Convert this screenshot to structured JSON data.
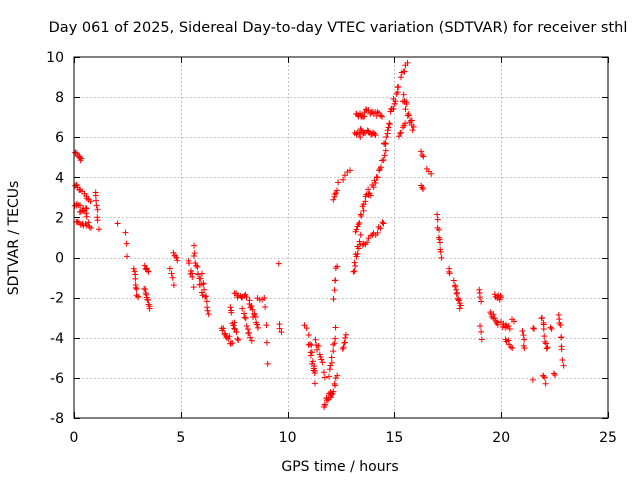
{
  "colors": {
    "series": "#ff0000",
    "grid": "#a0a0a0",
    "frame": "#000000",
    "background": "#ffffff"
  },
  "chart_data": {
    "type": "scatter",
    "title": "Day 061 of 2025, Sidereal Day-to-day VTEC variation (SDTVAR) for receiver sthl",
    "xlabel": "GPS time / hours",
    "ylabel": "SDTVAR / TECUs",
    "xlim": [
      0,
      25
    ],
    "ylim": [
      -8,
      10
    ],
    "xticks": [
      0,
      5,
      10,
      15,
      20,
      25
    ],
    "yticks": [
      -8,
      -6,
      -4,
      -2,
      0,
      2,
      4,
      6,
      8,
      10
    ],
    "grid": true,
    "marker": "plus",
    "series": [
      {
        "name": "SDTVAR",
        "segments": [
          {
            "x": [
              0.05,
              0.35
            ],
            "y": [
              5.2,
              4.9
            ],
            "n": 8,
            "noise": 0.1
          },
          {
            "x": [
              0.05,
              0.35
            ],
            "y": [
              3.6,
              3.3
            ],
            "n": 8,
            "noise": 0.1
          },
          {
            "x": [
              0.05,
              0.6
            ],
            "y": [
              2.5,
              2.2
            ],
            "n": 12,
            "noise": 0.25
          },
          {
            "x": [
              0.1,
              0.6
            ],
            "y": [
              1.7,
              1.7
            ],
            "n": 8,
            "noise": 0.15
          },
          {
            "x": [
              0.5,
              0.75
            ],
            "y": [
              3.1,
              2.9
            ],
            "n": 5,
            "noise": 0.1
          },
          {
            "x": [
              0.55,
              0.8
            ],
            "y": [
              2.3,
              1.4
            ],
            "n": 5,
            "noise": 0.15
          },
          {
            "x": [
              1.0,
              1.15
            ],
            "y": [
              3.3,
              1.5
            ],
            "n": 8,
            "noise": 0.15
          },
          {
            "x": [
              2.05,
              2.05
            ],
            "y": [
              1.7,
              1.7
            ],
            "n": 1,
            "noise": 0
          },
          {
            "x": [
              2.4,
              2.5
            ],
            "y": [
              1.2,
              0.1
            ],
            "n": 3,
            "noise": 0.05
          },
          {
            "x": [
              2.8,
              3.0
            ],
            "y": [
              -0.5,
              -2.1
            ],
            "n": 10,
            "noise": 0.2
          },
          {
            "x": [
              3.3,
              3.5
            ],
            "y": [
              -0.5,
              -0.8
            ],
            "n": 6,
            "noise": 0.1
          },
          {
            "x": [
              3.3,
              3.55
            ],
            "y": [
              -1.5,
              -2.5
            ],
            "n": 10,
            "noise": 0.15
          },
          {
            "x": [
              4.5,
              4.7
            ],
            "y": [
              -0.6,
              -1.3
            ],
            "n": 4,
            "noise": 0.1
          },
          {
            "x": [
              4.65,
              4.85
            ],
            "y": [
              0.2,
              -0.1
            ],
            "n": 5,
            "noise": 0.1
          },
          {
            "x": [
              5.35,
              5.6
            ],
            "y": [
              -0.3,
              -1.3
            ],
            "n": 7,
            "noise": 0.2
          },
          {
            "x": [
              5.6,
              6.0
            ],
            "y": [
              0.4,
              -1.8
            ],
            "n": 14,
            "noise": 0.25
          },
          {
            "x": [
              6.0,
              6.3
            ],
            "y": [
              -1.0,
              -2.8
            ],
            "n": 10,
            "noise": 0.2
          },
          {
            "x": [
              6.9,
              7.4
            ],
            "y": [
              -3.4,
              -4.3
            ],
            "n": 12,
            "noise": 0.2
          },
          {
            "x": [
              7.3,
              7.7
            ],
            "y": [
              -2.7,
              -4.1
            ],
            "n": 12,
            "noise": 0.25
          },
          {
            "x": [
              7.5,
              8.1
            ],
            "y": [
              -1.9,
              -2.0
            ],
            "n": 10,
            "noise": 0.15
          },
          {
            "x": [
              7.9,
              8.3
            ],
            "y": [
              -2.6,
              -4.0
            ],
            "n": 10,
            "noise": 0.25
          },
          {
            "x": [
              8.2,
              8.6
            ],
            "y": [
              -2.3,
              -3.4
            ],
            "n": 12,
            "noise": 0.3
          },
          {
            "x": [
              8.6,
              8.9
            ],
            "y": [
              -2.0,
              -2.1
            ],
            "n": 4,
            "noise": 0.1
          },
          {
            "x": [
              8.95,
              9.05
            ],
            "y": [
              -2.4,
              -4.2
            ],
            "n": 3,
            "noise": 0.1
          },
          {
            "x": [
              9.05,
              9.05
            ],
            "y": [
              -5.3,
              -5.3
            ],
            "n": 1,
            "noise": 0
          },
          {
            "x": [
              9.6,
              9.6
            ],
            "y": [
              -0.3,
              -0.3
            ],
            "n": 1,
            "noise": 0
          },
          {
            "x": [
              9.6,
              9.7
            ],
            "y": [
              -3.4,
              -3.7
            ],
            "n": 3,
            "noise": 0.1
          },
          {
            "x": [
              10.8,
              11.1
            ],
            "y": [
              -3.2,
              -4.2
            ],
            "n": 4,
            "noise": 0.2
          },
          {
            "x": [
              11.0,
              11.3
            ],
            "y": [
              -4.2,
              -5.8
            ],
            "n": 8,
            "noise": 0.25
          },
          {
            "x": [
              11.1,
              11.3
            ],
            "y": [
              -5.0,
              -6.1
            ],
            "n": 5,
            "noise": 0.2
          },
          {
            "x": [
              11.3,
              11.75
            ],
            "y": [
              -4.0,
              -5.8
            ],
            "n": 10,
            "noise": 0.2
          },
          {
            "x": [
              11.7,
              12.05
            ],
            "y": [
              -7.3,
              -6.7
            ],
            "n": 12,
            "noise": 0.15
          },
          {
            "x": [
              11.95,
              12.25
            ],
            "y": [
              -5.9,
              -3.6
            ],
            "n": 10,
            "noise": 0.2
          },
          {
            "x": [
              12.05,
              12.3
            ],
            "y": [
              -7.0,
              -6.0
            ],
            "n": 8,
            "noise": 0.15
          },
          {
            "x": [
              12.15,
              12.3
            ],
            "y": [
              -1.9,
              -0.4
            ],
            "n": 6,
            "noise": 0.2
          },
          {
            "x": [
              12.15,
              12.35
            ],
            "y": [
              2.8,
              3.6
            ],
            "n": 6,
            "noise": 0.15
          },
          {
            "x": [
              12.6,
              12.75
            ],
            "y": [
              -4.7,
              -3.8
            ],
            "n": 6,
            "noise": 0.15
          },
          {
            "x": [
              12.6,
              12.9
            ],
            "y": [
              3.9,
              4.3
            ],
            "n": 4,
            "noise": 0.1
          },
          {
            "x": [
              13.1,
              13.4
            ],
            "y": [
              -0.6,
              0.9
            ],
            "n": 12,
            "noise": 0.25
          },
          {
            "x": [
              13.15,
              13.4
            ],
            "y": [
              6.2,
              6.1
            ],
            "n": 6,
            "noise": 0.1
          },
          {
            "x": [
              13.2,
              13.6
            ],
            "y": [
              7.2,
              7.0
            ],
            "n": 10,
            "noise": 0.1
          },
          {
            "x": [
              13.2,
              13.75
            ],
            "y": [
              1.3,
              3.3
            ],
            "n": 14,
            "noise": 0.2
          },
          {
            "x": [
              13.4,
              14.1
            ],
            "y": [
              6.3,
              6.2
            ],
            "n": 14,
            "noise": 0.12
          },
          {
            "x": [
              13.6,
              14.4
            ],
            "y": [
              7.3,
              7.1
            ],
            "n": 14,
            "noise": 0.12
          },
          {
            "x": [
              13.5,
              14.5
            ],
            "y": [
              0.5,
              1.7
            ],
            "n": 14,
            "noise": 0.15
          },
          {
            "x": [
              13.8,
              14.6
            ],
            "y": [
              3.0,
              5.2
            ],
            "n": 16,
            "noise": 0.2
          },
          {
            "x": [
              14.5,
              15.2
            ],
            "y": [
              5.5,
              8.7
            ],
            "n": 22,
            "noise": 0.3
          },
          {
            "x": [
              15.2,
              15.5
            ],
            "y": [
              6.1,
              6.7
            ],
            "n": 6,
            "noise": 0.15
          },
          {
            "x": [
              15.3,
              15.6
            ],
            "y": [
              9.0,
              9.6
            ],
            "n": 6,
            "noise": 0.15
          },
          {
            "x": [
              15.4,
              15.9
            ],
            "y": [
              8.0,
              6.4
            ],
            "n": 16,
            "noise": 0.3
          },
          {
            "x": [
              16.25,
              16.35
            ],
            "y": [
              5.3,
              5.0
            ],
            "n": 3,
            "noise": 0.05
          },
          {
            "x": [
              16.25,
              16.35
            ],
            "y": [
              3.6,
              3.4
            ],
            "n": 3,
            "noise": 0.05
          },
          {
            "x": [
              16.5,
              16.7
            ],
            "y": [
              4.4,
              4.2
            ],
            "n": 3,
            "noise": 0.05
          },
          {
            "x": [
              17.0,
              17.2
            ],
            "y": [
              2.1,
              -0.1
            ],
            "n": 10,
            "noise": 0.2
          },
          {
            "x": [
              17.55,
              17.6
            ],
            "y": [
              -0.6,
              -0.8
            ],
            "n": 3,
            "noise": 0.05
          },
          {
            "x": [
              17.8,
              18.1
            ],
            "y": [
              -1.3,
              -2.5
            ],
            "n": 12,
            "noise": 0.2
          },
          {
            "x": [
              18.95,
              19.05
            ],
            "y": [
              -1.6,
              -2.2
            ],
            "n": 4,
            "noise": 0.1
          },
          {
            "x": [
              19.0,
              19.1
            ],
            "y": [
              -3.4,
              -4.0
            ],
            "n": 3,
            "noise": 0.1
          },
          {
            "x": [
              19.5,
              19.85
            ],
            "y": [
              -2.8,
              -3.3
            ],
            "n": 10,
            "noise": 0.15
          },
          {
            "x": [
              19.7,
              20.0
            ],
            "y": [
              -1.8,
              -2.1
            ],
            "n": 8,
            "noise": 0.15
          },
          {
            "x": [
              20.0,
              20.4
            ],
            "y": [
              -3.3,
              -3.6
            ],
            "n": 8,
            "noise": 0.15
          },
          {
            "x": [
              20.2,
              20.5
            ],
            "y": [
              -4.0,
              -4.5
            ],
            "n": 6,
            "noise": 0.15
          },
          {
            "x": [
              20.5,
              20.6
            ],
            "y": [
              -3.1,
              -3.2
            ],
            "n": 2,
            "noise": 0.05
          },
          {
            "x": [
              21.0,
              21.1
            ],
            "y": [
              -3.6,
              -4.6
            ],
            "n": 5,
            "noise": 0.1
          },
          {
            "x": [
              21.5,
              21.55
            ],
            "y": [
              -3.5,
              -3.6
            ],
            "n": 2,
            "noise": 0.05
          },
          {
            "x": [
              21.5,
              21.5
            ],
            "y": [
              -6.1,
              -6.1
            ],
            "n": 1,
            "noise": 0
          },
          {
            "x": [
              21.9,
              22.15
            ],
            "y": [
              -2.9,
              -4.6
            ],
            "n": 10,
            "noise": 0.25
          },
          {
            "x": [
              21.95,
              22.1
            ],
            "y": [
              -5.8,
              -6.2
            ],
            "n": 4,
            "noise": 0.1
          },
          {
            "x": [
              22.3,
              22.35
            ],
            "y": [
              -3.5,
              -3.6
            ],
            "n": 2,
            "noise": 0.05
          },
          {
            "x": [
              22.45,
              22.5
            ],
            "y": [
              -5.8,
              -5.9
            ],
            "n": 2,
            "noise": 0.05
          },
          {
            "x": [
              22.7,
              22.9
            ],
            "y": [
              -2.7,
              -5.4
            ],
            "n": 10,
            "noise": 0.25
          }
        ]
      }
    ]
  }
}
